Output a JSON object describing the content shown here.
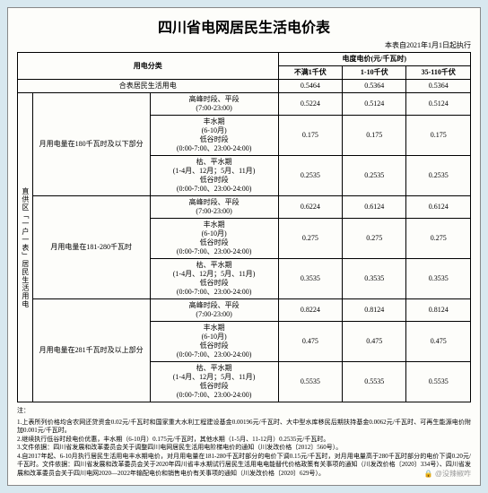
{
  "title": "四川省电网居民生活电价表",
  "effective": "本表自2021年1月1日起执行",
  "header": {
    "cat": "用电分类",
    "group": "电度电价(元/千瓦时)",
    "col1": "不满1千伏",
    "col2": "1-10千伏",
    "col3": "35-110千伏"
  },
  "combined": {
    "label": "合表居民生活用电",
    "p1": "0.5464",
    "p2": "0.5364",
    "p3": "0.5364"
  },
  "sideA": "直供区「一户一表」居民生活用电",
  "tiers": [
    {
      "label": "月用电量在180千瓦时及以下部分",
      "rows": [
        {
          "period": "高峰时段、平段\n(7:00-23:00)",
          "p1": "0.5224",
          "p2": "0.5124",
          "p3": "0.5124"
        },
        {
          "period": "丰水期\n(6-10月)\n低谷时段\n(0:00-7:00、23:00-24:00)",
          "p1": "0.175",
          "p2": "0.175",
          "p3": "0.175"
        },
        {
          "period": "枯、平水期\n(1-4月、12月；5月、11月)\n低谷时段\n(0:00-7:00、23:00-24:00)",
          "p1": "0.2535",
          "p2": "0.2535",
          "p3": "0.2535"
        }
      ]
    },
    {
      "label": "月用电量在181-280千瓦时",
      "rows": [
        {
          "period": "高峰时段、平段\n(7:00-23:00)",
          "p1": "0.6224",
          "p2": "0.6124",
          "p3": "0.6124"
        },
        {
          "period": "丰水期\n(6-10月)\n低谷时段\n(0:00-7:00、23:00-24:00)",
          "p1": "0.275",
          "p2": "0.275",
          "p3": "0.275"
        },
        {
          "period": "枯、平水期\n(1-4月、12月；5月、11月)\n低谷时段\n(0:00-7:00、23:00-24:00)",
          "p1": "0.3535",
          "p2": "0.3535",
          "p3": "0.3535"
        }
      ]
    },
    {
      "label": "月用电量在281千瓦时及以上部分",
      "rows": [
        {
          "period": "高峰时段、平段\n(7:00-23:00)",
          "p1": "0.8224",
          "p2": "0.8124",
          "p3": "0.8124"
        },
        {
          "period": "丰水期\n(6-10月)\n低谷时段\n(0:00-7:00、23:00-24:00)",
          "p1": "0.475",
          "p2": "0.475",
          "p3": "0.475"
        },
        {
          "period": "枯、平水期\n(1-4月、12月；5月、11月)\n低谷时段\n(0:00-7:00、23:00-24:00)",
          "p1": "0.5535",
          "p2": "0.5535",
          "p3": "0.5535"
        }
      ]
    }
  ],
  "notesHeader": "注：",
  "notes": [
    "1.上表所列价格均含农网还贷资金0.02元/千瓦时和国家重大水利工程建设基金0.00196元/千瓦时、大中型水库移民后期扶持基金0.0062元/千瓦时、可再生能源电价附加0.001元/千瓦时。",
    "2.继续执行低谷时段电价优惠，丰水期（6-10月）0.175元/千瓦时，其他水期（1-5月、11-12月）0.2535元/千瓦时。",
    "3.文件依据：四川省发展和改革委员会关于调整四川电网居民生活用电阶梯电价的通知（川发改价格〔2012〕560号）。",
    "4.自2017年起、6-10月执行居民生活用电丰水期电价，对月用电量在181-280千瓦时部分的电价下调0.15元/千瓦时，对月用电量高于280千瓦时部分的电价下调0.20元/千瓦时。文件依据：四川省发展和改革委员会关于2020年四川省丰水期试行居民生活用电电能替代价格政策有关事项的通知（川发改价格〔2020〕334号）、四川省发展和改革委员会关于四川电网2020—2022年输配电价和销售电价有关事项的通知（川发改价格〔2020〕629号）。"
  ],
  "watermark": "🔒 @没辣椒咋"
}
